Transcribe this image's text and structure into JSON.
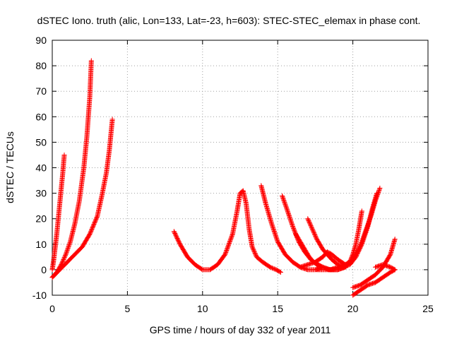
{
  "chart_data": {
    "type": "scatter",
    "title": "dSTEC Iono. truth (alic, Lon=133, Lat=-23, h=603): STEC-STEC_elemax in phase cont.",
    "xlabel": "GPS time / hours of day 332 of year 2011",
    "ylabel": "dSTEC  / TECUs",
    "xlim": [
      0,
      25
    ],
    "ylim": [
      -10,
      90
    ],
    "xticks": [
      0,
      5,
      10,
      15,
      20,
      25
    ],
    "yticks": [
      -10,
      0,
      10,
      20,
      30,
      40,
      50,
      60,
      70,
      80,
      90
    ],
    "grid": true,
    "marker": "plus",
    "colors": {
      "series": "#ff0000",
      "grid": "#a0a0a0",
      "axis": "#000000"
    },
    "series": [
      {
        "x": [
          0.0,
          0.1,
          0.2,
          0.3,
          0.4,
          0.5,
          0.6,
          0.7,
          0.8
        ],
        "y": [
          0,
          4,
          9,
          14,
          20,
          26,
          32,
          38,
          45
        ]
      },
      {
        "x": [
          0.0,
          0.3,
          0.6,
          0.9,
          1.2,
          1.5,
          1.8,
          2.1,
          2.3,
          2.5,
          2.6
        ],
        "y": [
          -3,
          -1,
          2,
          6,
          11,
          18,
          27,
          40,
          52,
          68,
          82
        ]
      },
      {
        "x": [
          0.0,
          0.5,
          1.0,
          1.5,
          2.0,
          2.5,
          3.0,
          3.3,
          3.6,
          3.8,
          4.0
        ],
        "y": [
          -3,
          0,
          3,
          6,
          9,
          14,
          21,
          29,
          38,
          47,
          59
        ]
      },
      {
        "x": [
          8.1,
          8.5,
          9.0,
          9.5,
          10.0,
          10.5,
          11.0,
          11.5,
          12.0,
          12.3,
          12.5,
          12.7,
          12.9,
          13.1,
          13.3,
          13.6,
          14.0,
          14.5,
          14.9,
          15.2
        ],
        "y": [
          15,
          10,
          5,
          2,
          0,
          0,
          2,
          6,
          14,
          23,
          30,
          31,
          26,
          16,
          9,
          5,
          3,
          1,
          0,
          -1
        ]
      },
      {
        "x": [
          13.9,
          14.2,
          14.6,
          15.0,
          15.5,
          16.0,
          16.5,
          17.0,
          17.5,
          18.0
        ],
        "y": [
          33,
          26,
          18,
          11,
          6,
          3,
          1,
          0,
          0,
          1
        ]
      },
      {
        "x": [
          15.3,
          15.6,
          16.0,
          16.4,
          16.8,
          17.2,
          17.6,
          18.0,
          18.5,
          19.0
        ],
        "y": [
          29,
          24,
          17,
          11,
          7,
          4,
          2,
          1,
          0,
          0
        ]
      },
      {
        "x": [
          16.2,
          16.5,
          16.8,
          17.1,
          17.4,
          17.7,
          18.0,
          18.4,
          18.8
        ],
        "y": [
          14,
          11,
          8,
          5,
          3,
          2,
          1,
          0,
          0
        ]
      },
      {
        "x": [
          17.0,
          17.3,
          17.6,
          18.0,
          18.3,
          18.6,
          19.0,
          19.5
        ],
        "y": [
          20,
          16,
          12,
          8,
          6,
          4,
          2,
          1
        ]
      },
      {
        "x": [
          16.5,
          17.0,
          17.5,
          18.0,
          18.3,
          18.6,
          19.0,
          19.5
        ],
        "y": [
          1,
          2,
          3,
          5,
          7,
          6,
          4,
          2
        ]
      },
      {
        "x": [
          17.6,
          18.0,
          18.5,
          19.0,
          19.5,
          20.0,
          20.3,
          20.6,
          20.9,
          21.2,
          21.5,
          21.8
        ],
        "y": [
          0,
          0,
          0,
          1,
          2,
          4,
          7,
          11,
          16,
          21,
          27,
          32
        ]
      },
      {
        "x": [
          18.5,
          19.0,
          19.5,
          19.8,
          20.0,
          20.2,
          20.4,
          20.6
        ],
        "y": [
          0,
          0,
          1,
          3,
          6,
          10,
          16,
          23
        ]
      },
      {
        "x": [
          19.0,
          19.4,
          19.8,
          20.2,
          20.6,
          21.0,
          21.3,
          21.6
        ],
        "y": [
          0,
          1,
          2,
          5,
          10,
          17,
          24,
          30
        ]
      },
      {
        "x": [
          20.0,
          20.5,
          21.0,
          21.5,
          22.0,
          22.5,
          22.8
        ],
        "y": [
          -7,
          -6,
          -4,
          -2,
          1,
          6,
          12
        ]
      },
      {
        "x": [
          20.0,
          20.5,
          21.0,
          21.5,
          22.0,
          22.5,
          22.8
        ],
        "y": [
          -10,
          -8,
          -6,
          -5,
          -3,
          -1,
          0
        ]
      },
      {
        "x": [
          21.5,
          22.0,
          22.5,
          22.8
        ],
        "y": [
          1,
          2,
          1,
          0
        ]
      }
    ]
  }
}
